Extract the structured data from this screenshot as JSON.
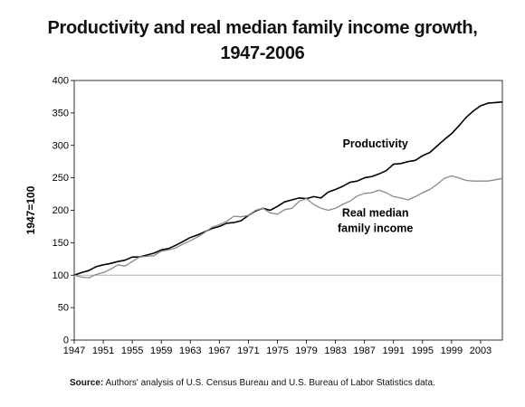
{
  "chart_data": {
    "type": "line",
    "title": "Productivity and real median family income growth,",
    "title_line2": "1947-2006",
    "ylabel": "1947=100",
    "xlabel": "",
    "xlim": [
      1947,
      2006
    ],
    "ylim": [
      0,
      400
    ],
    "yticks": [
      0,
      50,
      100,
      150,
      200,
      250,
      300,
      350,
      400
    ],
    "xticks": [
      "1947",
      "1951",
      "1955",
      "1959",
      "1963",
      "1967",
      "1971",
      "1975",
      "1979",
      "1983",
      "1987",
      "1991",
      "1995",
      "1999",
      "2003"
    ],
    "reference_line": 100,
    "grid": false,
    "legend": "inline labels",
    "series": [
      {
        "name": "Productivity",
        "label_lines": [
          "Productivity"
        ],
        "color": "#000000",
        "x": [
          1947,
          1948,
          1949,
          1950,
          1951,
          1952,
          1953,
          1954,
          1955,
          1956,
          1957,
          1958,
          1959,
          1960,
          1961,
          1962,
          1963,
          1964,
          1965,
          1966,
          1967,
          1968,
          1969,
          1970,
          1971,
          1972,
          1973,
          1974,
          1975,
          1976,
          1977,
          1978,
          1979,
          1980,
          1981,
          1982,
          1983,
          1984,
          1985,
          1986,
          1987,
          1988,
          1989,
          1990,
          1991,
          1992,
          1993,
          1994,
          1995,
          1996,
          1997,
          1998,
          1999,
          2000,
          2001,
          2002,
          2003,
          2004,
          2005,
          2006
        ],
        "values": [
          100,
          104,
          107,
          113,
          116,
          118,
          121,
          123,
          128,
          128,
          131,
          134,
          139,
          141,
          146,
          152,
          158,
          162,
          167,
          172,
          175,
          180,
          181,
          184,
          192,
          199,
          203,
          200,
          206,
          213,
          216,
          219,
          218,
          221,
          219,
          228,
          232,
          237,
          243,
          245,
          250,
          252,
          256,
          261,
          271,
          272,
          275,
          277,
          284,
          289,
          299,
          309,
          318,
          330,
          343,
          353,
          361,
          365,
          366,
          367
        ]
      },
      {
        "name": "Real median family income",
        "label_lines": [
          "Real median",
          "family income"
        ],
        "color": "#8a8a8a",
        "x": [
          1947,
          1948,
          1949,
          1950,
          1951,
          1952,
          1953,
          1954,
          1955,
          1956,
          1957,
          1958,
          1959,
          1960,
          1961,
          1962,
          1963,
          1964,
          1965,
          1966,
          1967,
          1968,
          1969,
          1970,
          1971,
          1972,
          1973,
          1974,
          1975,
          1976,
          1977,
          1978,
          1979,
          1980,
          1981,
          1982,
          1983,
          1984,
          1985,
          1986,
          1987,
          1988,
          1989,
          1990,
          1991,
          1992,
          1993,
          1994,
          1995,
          1996,
          1997,
          1998,
          1999,
          2000,
          2001,
          2002,
          2003,
          2004,
          2005,
          2006
        ],
        "values": [
          100,
          97,
          96,
          101,
          104,
          109,
          116,
          114,
          121,
          128,
          129,
          130,
          137,
          139,
          142,
          148,
          153,
          159,
          166,
          174,
          178,
          183,
          191,
          190,
          192,
          200,
          203,
          196,
          194,
          201,
          203,
          214,
          218,
          209,
          203,
          200,
          203,
          209,
          214,
          222,
          226,
          227,
          231,
          227,
          221,
          219,
          216,
          221,
          227,
          232,
          240,
          249,
          253,
          250,
          246,
          245,
          245,
          245,
          247,
          249
        ]
      }
    ]
  },
  "source": {
    "label": "Source:",
    "text": " Authors' analysis of U.S. Census Bureau and U.S. Bureau of Labor Statistics data."
  }
}
